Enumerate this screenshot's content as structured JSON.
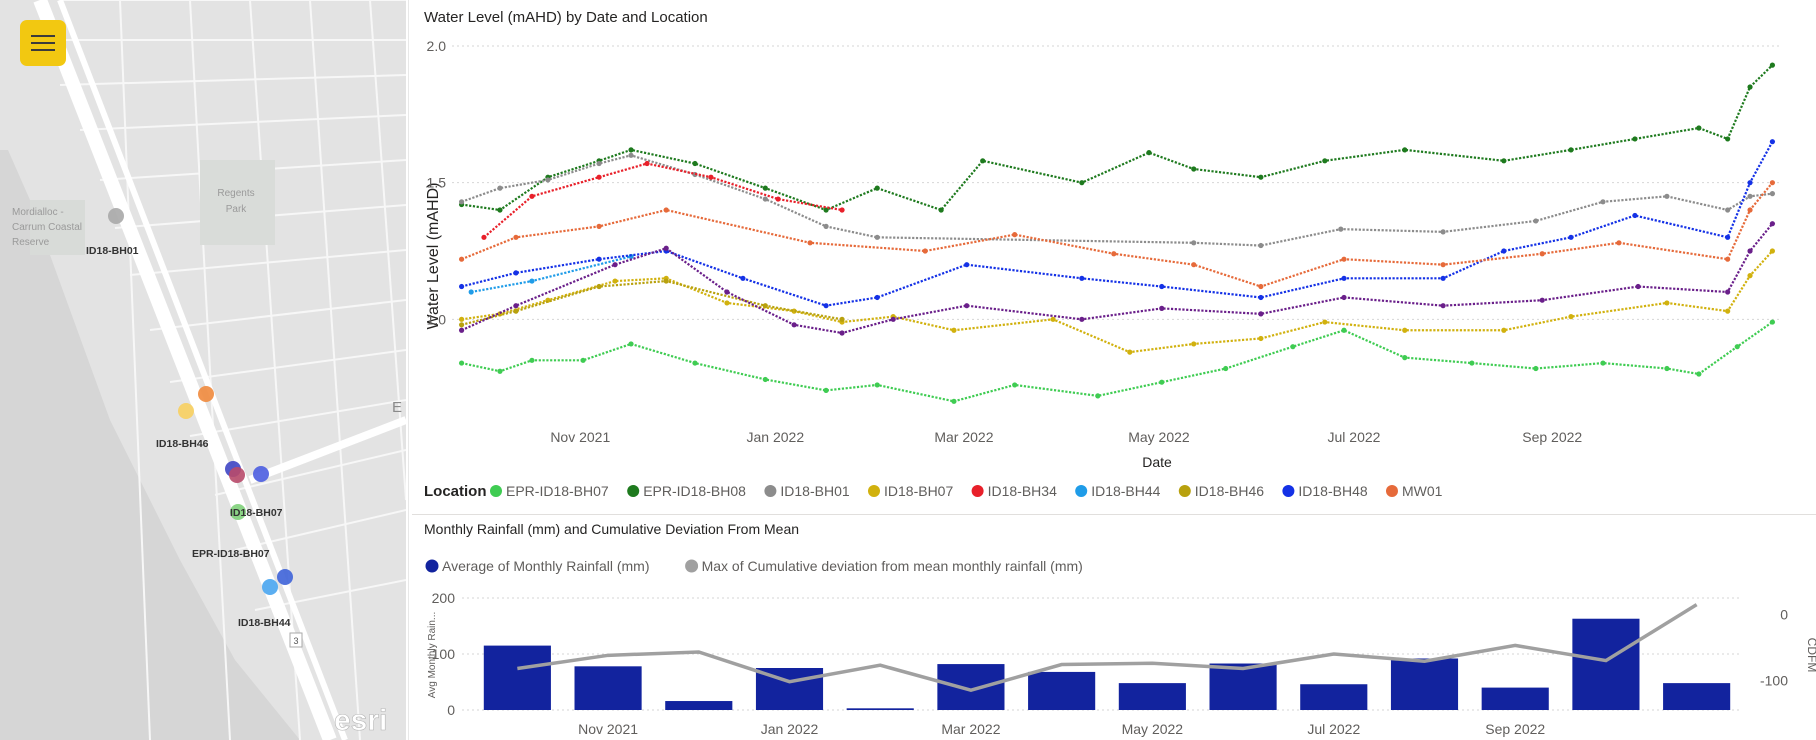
{
  "map": {
    "place_labels": [
      "Mordialloc -",
      "Carrum Coastal",
      "Reserve",
      "Regents",
      "Park",
      "E"
    ],
    "route_shield": "3",
    "logo": "esri",
    "points": [
      {
        "label": "ID18-BH01",
        "color": "#a9a9a9"
      },
      {
        "label": "ID18-BH46",
        "color": "#f7cf5f"
      },
      {
        "label": "",
        "color": "#f08a3d"
      },
      {
        "label": "ID18-BH07",
        "color": "#3f46c4"
      },
      {
        "label": "",
        "color": "#b84a6a"
      },
      {
        "label": "",
        "color": "#4b5de0"
      },
      {
        "label": "EPR-ID18-BH07",
        "color": "#7fd07a"
      },
      {
        "label": "ID18-BH44",
        "color": "#49a5f0"
      },
      {
        "label": "",
        "color": "#3e63d8"
      }
    ],
    "visible_labels": [
      "ID18-BH01",
      "ID18-BH46",
      "ID18-BH07",
      "EPR-ID18-BH07",
      "ID18-BH44"
    ]
  },
  "chart_data": [
    {
      "type": "scatter",
      "title": "Water Level (mAHD) by Date and Location",
      "xlabel": "Date",
      "ylabel": "Water Level (mAHD)",
      "x_ticks": [
        "Nov 2021",
        "Jan 2022",
        "Mar 2022",
        "May 2022",
        "Jul 2022",
        "Sep 2022"
      ],
      "y_ticks": [
        "1.0",
        "1.5",
        "2.0"
      ],
      "ylim": [
        0.65,
        2.0
      ],
      "xlim": [
        "2021-09-25",
        "2022-11-15"
      ],
      "grid": true,
      "legend_title": "Location",
      "legend_position": "bottom",
      "series": [
        {
          "name": "EPR-ID18-BH07",
          "color": "#3fcc52",
          "points": [
            [
              "2021-09-28",
              0.84
            ],
            [
              "2021-10-10",
              0.81
            ],
            [
              "2021-10-20",
              0.85
            ],
            [
              "2021-11-05",
              0.85
            ],
            [
              "2021-11-20",
              0.91
            ],
            [
              "2021-12-10",
              0.84
            ],
            [
              "2022-01-01",
              0.78
            ],
            [
              "2022-01-20",
              0.74
            ],
            [
              "2022-02-05",
              0.76
            ],
            [
              "2022-03-01",
              0.7
            ],
            [
              "2022-03-20",
              0.76
            ],
            [
              "2022-04-15",
              0.72
            ],
            [
              "2022-05-05",
              0.77
            ],
            [
              "2022-05-25",
              0.82
            ],
            [
              "2022-06-15",
              0.9
            ],
            [
              "2022-07-01",
              0.96
            ],
            [
              "2022-07-20",
              0.86
            ],
            [
              "2022-08-10",
              0.84
            ],
            [
              "2022-08-30",
              0.82
            ],
            [
              "2022-09-20",
              0.84
            ],
            [
              "2022-10-10",
              0.82
            ],
            [
              "2022-10-20",
              0.8
            ],
            [
              "2022-11-01",
              0.9
            ],
            [
              "2022-11-12",
              0.99
            ]
          ]
        },
        {
          "name": "EPR-ID18-BH08",
          "color": "#1e7a1e",
          "points": [
            [
              "2021-09-28",
              1.42
            ],
            [
              "2021-10-10",
              1.4
            ],
            [
              "2021-10-25",
              1.52
            ],
            [
              "2021-11-10",
              1.58
            ],
            [
              "2021-11-20",
              1.62
            ],
            [
              "2021-12-10",
              1.57
            ],
            [
              "2022-01-01",
              1.48
            ],
            [
              "2022-01-20",
              1.4
            ],
            [
              "2022-02-05",
              1.48
            ],
            [
              "2022-02-25",
              1.4
            ],
            [
              "2022-03-10",
              1.58
            ],
            [
              "2022-04-10",
              1.5
            ],
            [
              "2022-05-01",
              1.61
            ],
            [
              "2022-05-15",
              1.55
            ],
            [
              "2022-06-05",
              1.52
            ],
            [
              "2022-06-25",
              1.58
            ],
            [
              "2022-07-20",
              1.62
            ],
            [
              "2022-08-20",
              1.58
            ],
            [
              "2022-09-10",
              1.62
            ],
            [
              "2022-09-30",
              1.66
            ],
            [
              "2022-10-20",
              1.7
            ],
            [
              "2022-10-29",
              1.66
            ],
            [
              "2022-11-05",
              1.85
            ],
            [
              "2022-11-12",
              1.93
            ]
          ]
        },
        {
          "name": "ID18-BH01",
          "color": "#8c8c8c",
          "points": [
            [
              "2021-09-28",
              1.43
            ],
            [
              "2021-10-10",
              1.48
            ],
            [
              "2021-10-25",
              1.51
            ],
            [
              "2021-11-10",
              1.57
            ],
            [
              "2021-11-20",
              1.6
            ],
            [
              "2021-12-10",
              1.53
            ],
            [
              "2022-01-01",
              1.44
            ],
            [
              "2022-01-20",
              1.34
            ],
            [
              "2022-02-05",
              1.3
            ],
            [
              "2022-05-15",
              1.28
            ],
            [
              "2022-06-05",
              1.27
            ],
            [
              "2022-06-30",
              1.33
            ],
            [
              "2022-08-01",
              1.32
            ],
            [
              "2022-08-30",
              1.36
            ],
            [
              "2022-09-20",
              1.43
            ],
            [
              "2022-10-10",
              1.45
            ],
            [
              "2022-10-29",
              1.4
            ],
            [
              "2022-11-05",
              1.45
            ],
            [
              "2022-11-12",
              1.46
            ]
          ]
        },
        {
          "name": "ID18-BH07",
          "color": "#d1b10e",
          "points": [
            [
              "2021-09-28",
              1.0
            ],
            [
              "2021-10-10",
              1.02
            ],
            [
              "2021-10-25",
              1.07
            ],
            [
              "2021-11-15",
              1.14
            ],
            [
              "2021-12-01",
              1.15
            ],
            [
              "2021-12-20",
              1.06
            ],
            [
              "2022-01-10",
              1.03
            ],
            [
              "2022-01-25",
              0.99
            ],
            [
              "2022-02-10",
              1.01
            ],
            [
              "2022-03-01",
              0.96
            ],
            [
              "2022-04-01",
              1.0
            ],
            [
              "2022-04-25",
              0.88
            ],
            [
              "2022-05-15",
              0.91
            ],
            [
              "2022-06-05",
              0.93
            ],
            [
              "2022-06-25",
              0.99
            ],
            [
              "2022-07-20",
              0.96
            ],
            [
              "2022-08-20",
              0.96
            ],
            [
              "2022-09-10",
              1.01
            ],
            [
              "2022-10-10",
              1.06
            ],
            [
              "2022-10-29",
              1.03
            ],
            [
              "2022-11-05",
              1.16
            ],
            [
              "2022-11-12",
              1.25
            ]
          ]
        },
        {
          "name": "ID18-BH34",
          "color": "#e8202a",
          "points": [
            [
              "2021-10-05",
              1.3
            ],
            [
              "2021-10-20",
              1.45
            ],
            [
              "2021-11-10",
              1.52
            ],
            [
              "2021-11-25",
              1.57
            ],
            [
              "2021-12-15",
              1.52
            ],
            [
              "2022-01-05",
              1.44
            ],
            [
              "2022-01-25",
              1.4
            ]
          ]
        },
        {
          "name": "ID18-BH44",
          "color": "#1f9ce8",
          "points": [
            [
              "2021-10-01",
              1.1
            ],
            [
              "2021-10-20",
              1.14
            ],
            [
              "2021-11-20",
              1.23
            ]
          ]
        },
        {
          "name": "ID18-BH46",
          "color": "#b8a10e",
          "points": [
            [
              "2021-09-28",
              0.98
            ],
            [
              "2021-10-15",
              1.03
            ],
            [
              "2021-11-10",
              1.12
            ],
            [
              "2021-12-01",
              1.14
            ],
            [
              "2022-01-01",
              1.05
            ],
            [
              "2022-01-25",
              1.0
            ]
          ]
        },
        {
          "name": "ID18-BH48",
          "color": "#1431e6",
          "points": [
            [
              "2021-09-28",
              1.12
            ],
            [
              "2021-10-15",
              1.17
            ],
            [
              "2021-11-10",
              1.22
            ],
            [
              "2021-12-01",
              1.25
            ],
            [
              "2021-12-25",
              1.15
            ],
            [
              "2022-01-20",
              1.05
            ],
            [
              "2022-02-05",
              1.08
            ],
            [
              "2022-03-05",
              1.2
            ],
            [
              "2022-04-10",
              1.15
            ],
            [
              "2022-05-05",
              1.12
            ],
            [
              "2022-06-05",
              1.08
            ],
            [
              "2022-07-01",
              1.15
            ],
            [
              "2022-08-01",
              1.15
            ],
            [
              "2022-08-20",
              1.25
            ],
            [
              "2022-09-10",
              1.3
            ],
            [
              "2022-09-30",
              1.38
            ],
            [
              "2022-10-29",
              1.3
            ],
            [
              "2022-11-05",
              1.5
            ],
            [
              "2022-11-12",
              1.65
            ]
          ]
        },
        {
          "name": "MW01",
          "color": "#e66a3a",
          "points": [
            [
              "2021-09-28",
              1.22
            ],
            [
              "2021-10-15",
              1.3
            ],
            [
              "2021-11-10",
              1.34
            ],
            [
              "2021-12-01",
              1.4
            ],
            [
              "2022-01-15",
              1.28
            ],
            [
              "2022-02-20",
              1.25
            ],
            [
              "2022-03-20",
              1.31
            ],
            [
              "2022-04-20",
              1.24
            ],
            [
              "2022-05-15",
              1.2
            ],
            [
              "2022-06-05",
              1.12
            ],
            [
              "2022-07-01",
              1.22
            ],
            [
              "2022-08-01",
              1.2
            ],
            [
              "2022-09-01",
              1.24
            ],
            [
              "2022-09-25",
              1.28
            ],
            [
              "2022-10-29",
              1.22
            ],
            [
              "2022-11-05",
              1.4
            ],
            [
              "2022-11-12",
              1.5
            ]
          ]
        },
        {
          "name": "",
          "color": "#6a1f8a",
          "points": [
            [
              "2021-09-28",
              0.96
            ],
            [
              "2021-10-15",
              1.05
            ],
            [
              "2021-11-15",
              1.2
            ],
            [
              "2021-12-01",
              1.26
            ],
            [
              "2021-12-20",
              1.1
            ],
            [
              "2022-01-10",
              0.98
            ],
            [
              "2022-01-25",
              0.95
            ],
            [
              "2022-02-10",
              1.0
            ],
            [
              "2022-03-05",
              1.05
            ],
            [
              "2022-04-10",
              1.0
            ],
            [
              "2022-05-05",
              1.04
            ],
            [
              "2022-06-05",
              1.02
            ],
            [
              "2022-07-01",
              1.08
            ],
            [
              "2022-08-01",
              1.05
            ],
            [
              "2022-09-01",
              1.07
            ],
            [
              "2022-10-01",
              1.12
            ],
            [
              "2022-10-29",
              1.1
            ],
            [
              "2022-11-05",
              1.25
            ],
            [
              "2022-11-12",
              1.35
            ]
          ]
        }
      ]
    },
    {
      "type": "bar",
      "title": "Monthly Rainfall (mm) and Cumulative Deviation From Mean",
      "categories": [
        "2021-10",
        "2021-11",
        "2021-12",
        "2022-01",
        "2022-02",
        "2022-03",
        "2022-04",
        "2022-05",
        "2022-06",
        "2022-07",
        "2022-08",
        "2022-09",
        "2022-10",
        "2022-11"
      ],
      "x_ticks": [
        "Nov 2021",
        "Jan 2022",
        "Mar 2022",
        "May 2022",
        "Jul 2022",
        "Sep 2022"
      ],
      "ylabel": "Avg Monthly Rain...",
      "y2label": "CDFM",
      "y_ticks": [
        "0",
        "100",
        "200"
      ],
      "y2_ticks": [
        "-100",
        "0"
      ],
      "ylim": [
        0,
        200
      ],
      "y2lim": [
        -145,
        25
      ],
      "legend_position": "top-left",
      "series": [
        {
          "name": "Average of Monthly Rainfall (mm)",
          "type": "bar",
          "color": "#12239e",
          "values": [
            115,
            78,
            16,
            75,
            3,
            82,
            68,
            48,
            83,
            46,
            92,
            40,
            163,
            48
          ]
        },
        {
          "name": "Max of Cumulative deviation from mean monthly rainfall (mm)",
          "type": "line",
          "color": "#a0a0a0",
          "values": [
            -82,
            -62,
            -57,
            -102,
            -77,
            -115,
            -76,
            -74,
            -82,
            -60,
            -71,
            -47,
            -70,
            15
          ]
        }
      ]
    }
  ]
}
